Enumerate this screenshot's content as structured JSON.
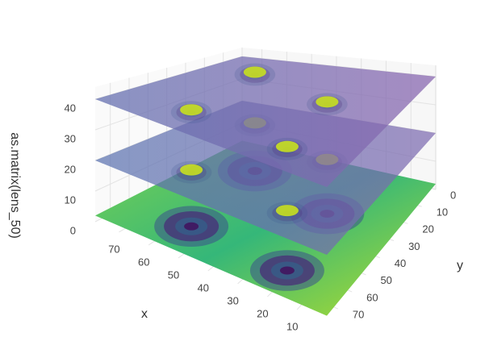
{
  "chart_data": {
    "type": "surface3d",
    "x_label": "x",
    "y_label": "y",
    "z_label": "as.matrix(lens_50)",
    "xlim": [
      0,
      78
    ],
    "ylim": [
      0,
      78
    ],
    "zlim": [
      0,
      44
    ],
    "xticks": [
      10,
      20,
      30,
      40,
      50,
      60,
      70
    ],
    "yticks": [
      0,
      10,
      20,
      30,
      40,
      50,
      60,
      70
    ],
    "zticks": [
      0,
      10,
      20,
      30,
      40
    ],
    "surface_levels": [
      2,
      20,
      40
    ],
    "grid": true
  }
}
